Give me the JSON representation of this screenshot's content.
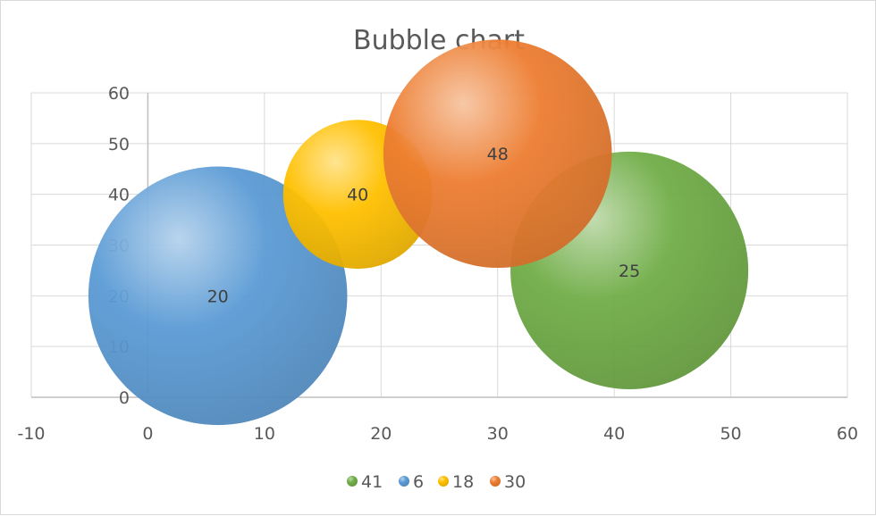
{
  "chart_data": {
    "type": "bubble",
    "title": "Bubble chart",
    "xlim": [
      -10,
      60
    ],
    "ylim": [
      0,
      60
    ],
    "x_ticks": [
      "-10",
      "0",
      "10",
      "20",
      "30",
      "40",
      "50",
      "60"
    ],
    "y_ticks": [
      "0",
      "10",
      "20",
      "30",
      "40",
      "50",
      "60"
    ],
    "grid": true,
    "legend_position": "bottom",
    "series": [
      {
        "name": "41",
        "x": 41.3,
        "y": 25,
        "size": 25,
        "label": "25",
        "color": "#70ad47"
      },
      {
        "name": "6",
        "x": 6,
        "y": 20,
        "size": 20,
        "label": "20",
        "color": "#5b9bd5"
      },
      {
        "name": "18",
        "x": 18,
        "y": 40,
        "size": 40,
        "label": "40",
        "color": "#ffc000"
      },
      {
        "name": "30",
        "x": 30,
        "y": 48,
        "size": 48,
        "label": "48",
        "color": "#ed7d31"
      }
    ],
    "bubble_radius_units": [
      10.2,
      11.1,
      6.4,
      9.8
    ]
  }
}
